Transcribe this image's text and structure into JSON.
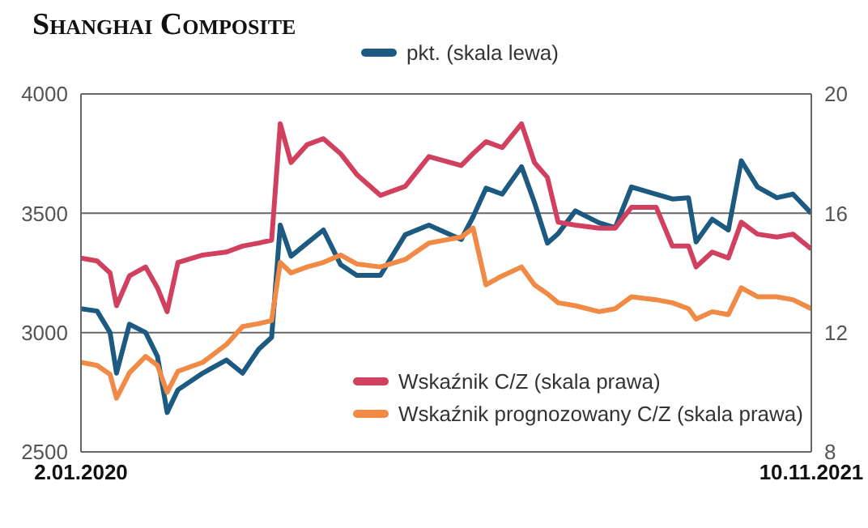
{
  "chart_data": {
    "type": "line",
    "title": "Shanghai Composite",
    "x": [
      "2020-01-02",
      "2020-01-17",
      "2020-01-29",
      "2020-02-04",
      "2020-02-16",
      "2020-03-02",
      "2020-03-13",
      "2020-03-22",
      "2020-04-01",
      "2020-04-24",
      "2020-05-16",
      "2020-05-31",
      "2020-06-15",
      "2020-06-27",
      "2020-07-05",
      "2020-07-15",
      "2020-07-30",
      "2020-08-14",
      "2020-08-30",
      "2020-09-14",
      "2020-10-06",
      "2020-10-29",
      "2020-11-20",
      "2020-12-20",
      "2020-12-31",
      "2021-01-12",
      "2021-01-27",
      "2021-02-14",
      "2021-02-26",
      "2021-03-10",
      "2021-03-20",
      "2021-04-05",
      "2021-04-27",
      "2021-05-12",
      "2021-05-27",
      "2021-06-19",
      "2021-07-04",
      "2021-07-19",
      "2021-07-26",
      "2021-08-10",
      "2021-08-25",
      "2021-09-06",
      "2021-09-21",
      "2021-10-09",
      "2021-10-24",
      "2021-11-10"
    ],
    "series": [
      {
        "name": "pkt. (skala lewa)",
        "color": "#1d5a82",
        "values": [
          3100,
          3090,
          3000,
          2830,
          3035,
          3000,
          2900,
          2665,
          2760,
          2830,
          2885,
          2830,
          2930,
          2980,
          3450,
          3320,
          3375,
          3430,
          3285,
          3240,
          3240,
          3410,
          3450,
          3390,
          3485,
          3605,
          3580,
          3695,
          3545,
          3375,
          3415,
          3510,
          3460,
          3440,
          3610,
          3580,
          3560,
          3565,
          3380,
          3475,
          3430,
          3720,
          3610,
          3565,
          3580,
          3500
        ]
      },
      {
        "name": "Wskaźnik C/Z (skala prawa)",
        "color": "#d1415f",
        "axis": "y2",
        "values": [
          14.5,
          14.4,
          14.0,
          12.9,
          13.9,
          14.2,
          13.5,
          12.7,
          14.35,
          14.6,
          14.7,
          14.9,
          15.0,
          15.1,
          19.0,
          17.7,
          18.3,
          18.5,
          18.0,
          17.3,
          16.6,
          16.9,
          17.9,
          17.6,
          18.0,
          18.4,
          18.2,
          19.0,
          17.7,
          17.2,
          15.7,
          15.6,
          15.5,
          15.5,
          16.2,
          16.2,
          14.9,
          14.9,
          14.2,
          14.7,
          14.5,
          15.7,
          15.3,
          15.2,
          15.3,
          14.8
        ]
      },
      {
        "name": "Wskaźnik prognozowany C/Z (skala prawa)",
        "color": "#f08a45",
        "axis": "y2",
        "values": [
          11.0,
          10.9,
          10.6,
          9.8,
          10.65,
          11.2,
          10.9,
          10.0,
          10.7,
          11.0,
          11.6,
          12.2,
          12.3,
          12.4,
          14.35,
          14.0,
          14.2,
          14.35,
          14.6,
          14.3,
          14.2,
          14.45,
          15.0,
          15.2,
          15.5,
          13.6,
          13.9,
          14.2,
          13.6,
          13.3,
          13.0,
          12.9,
          12.7,
          12.8,
          13.2,
          13.1,
          13.0,
          12.8,
          12.45,
          12.7,
          12.6,
          13.5,
          13.2,
          13.2,
          13.1,
          12.8
        ]
      }
    ],
    "xlim": [
      "2020-01-02",
      "2021-11-10"
    ],
    "xticks": [
      {
        "value": "2020-01-02",
        "label": "2.01.2020"
      },
      {
        "value": "2021-11-10",
        "label": "10.11.2021"
      }
    ],
    "ylim": [
      2500,
      4000
    ],
    "yticks": [
      2500,
      3000,
      3500,
      4000
    ],
    "y2lim": [
      8,
      20
    ],
    "y2ticks": [
      8,
      12,
      16,
      20
    ],
    "grid": "y",
    "legend": "top",
    "marker": "none",
    "line_style": "solid"
  }
}
